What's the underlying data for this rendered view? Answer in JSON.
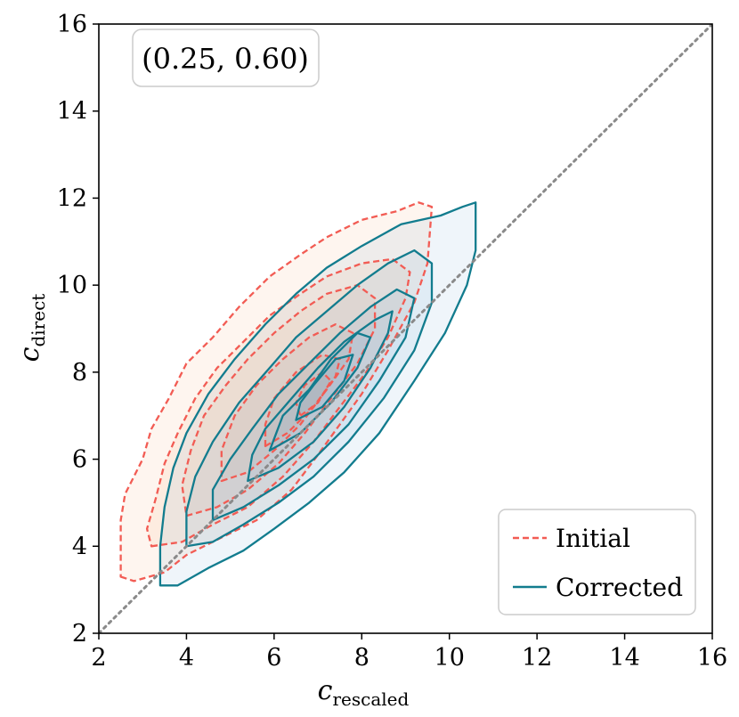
{
  "chart_data": {
    "type": "contour",
    "annotation": "(0.25, 0.60)",
    "xlabel": {
      "main": "c",
      "sub": "rescaled"
    },
    "ylabel": {
      "main": "c",
      "sub": "direct"
    },
    "xlim": [
      2,
      16
    ],
    "ylim": [
      2,
      16
    ],
    "xticks": [
      2,
      4,
      6,
      8,
      10,
      12,
      14,
      16
    ],
    "yticks": [
      2,
      4,
      6,
      8,
      10,
      12,
      14,
      16
    ],
    "reference_line": {
      "style": "dotted",
      "color": "#8a8a8a",
      "from": [
        2,
        2
      ],
      "to": [
        16,
        16
      ]
    },
    "legend": {
      "position": "lower-right",
      "entries": [
        "Initial",
        "Corrected"
      ]
    },
    "series": [
      {
        "name": "Initial",
        "color": "#f25c54",
        "fill": "#f9a070",
        "line_style": "dashed",
        "levels": [
          [
            [
              2.5,
              3.3
            ],
            [
              2.8,
              3.2
            ],
            [
              3.5,
              3.4
            ],
            [
              4.0,
              3.8
            ],
            [
              4.8,
              4.2
            ],
            [
              5.6,
              4.6
            ],
            [
              6.4,
              5.3
            ],
            [
              7.0,
              6.1
            ],
            [
              7.5,
              6.8
            ],
            [
              8.0,
              7.5
            ],
            [
              8.6,
              8.5
            ],
            [
              9.2,
              9.6
            ],
            [
              9.5,
              10.5
            ],
            [
              9.6,
              11.8
            ],
            [
              9.3,
              11.9
            ],
            [
              8.8,
              11.7
            ],
            [
              8.0,
              11.5
            ],
            [
              7.2,
              11.1
            ],
            [
              6.6,
              10.7
            ],
            [
              5.9,
              10.2
            ],
            [
              5.2,
              9.5
            ],
            [
              4.6,
              8.8
            ],
            [
              4.0,
              8.2
            ],
            [
              3.6,
              7.4
            ],
            [
              3.2,
              6.7
            ],
            [
              3.0,
              6.0
            ],
            [
              2.6,
              5.2
            ],
            [
              2.5,
              4.6
            ],
            [
              2.5,
              3.8
            ]
          ],
          [
            [
              3.2,
              4.0
            ],
            [
              3.9,
              4.1
            ],
            [
              4.6,
              4.5
            ],
            [
              5.4,
              4.9
            ],
            [
              6.2,
              5.6
            ],
            [
              6.9,
              6.4
            ],
            [
              7.5,
              7.2
            ],
            [
              8.1,
              8.0
            ],
            [
              8.6,
              8.8
            ],
            [
              9.0,
              9.7
            ],
            [
              9.1,
              10.3
            ],
            [
              8.7,
              10.6
            ],
            [
              8.0,
              10.5
            ],
            [
              7.2,
              10.2
            ],
            [
              6.6,
              9.8
            ],
            [
              5.9,
              9.3
            ],
            [
              5.3,
              8.7
            ],
            [
              4.7,
              8.1
            ],
            [
              4.2,
              7.4
            ],
            [
              3.8,
              6.6
            ],
            [
              3.5,
              5.9
            ],
            [
              3.3,
              5.1
            ],
            [
              3.1,
              4.4
            ]
          ],
          [
            [
              4.0,
              4.7
            ],
            [
              4.7,
              4.9
            ],
            [
              5.4,
              5.3
            ],
            [
              6.1,
              5.9
            ],
            [
              6.7,
              6.6
            ],
            [
              7.3,
              7.4
            ],
            [
              7.9,
              8.2
            ],
            [
              8.3,
              9.0
            ],
            [
              8.3,
              9.7
            ],
            [
              7.9,
              10.0
            ],
            [
              7.2,
              9.8
            ],
            [
              6.6,
              9.4
            ],
            [
              6.0,
              8.9
            ],
            [
              5.4,
              8.3
            ],
            [
              4.9,
              7.7
            ],
            [
              4.4,
              7.0
            ],
            [
              4.1,
              6.2
            ],
            [
              3.9,
              5.4
            ]
          ],
          [
            [
              4.8,
              5.5
            ],
            [
              5.4,
              5.7
            ],
            [
              6.0,
              6.2
            ],
            [
              6.6,
              6.8
            ],
            [
              7.2,
              7.6
            ],
            [
              7.7,
              8.3
            ],
            [
              7.8,
              8.9
            ],
            [
              7.4,
              9.1
            ],
            [
              6.8,
              8.8
            ],
            [
              6.2,
              8.3
            ],
            [
              5.6,
              7.7
            ],
            [
              5.1,
              7.0
            ],
            [
              4.8,
              6.2
            ]
          ],
          [
            [
              5.8,
              6.3
            ],
            [
              6.3,
              6.6
            ],
            [
              6.9,
              7.2
            ],
            [
              7.4,
              7.9
            ],
            [
              7.5,
              8.3
            ],
            [
              7.1,
              8.4
            ],
            [
              6.5,
              8.0
            ],
            [
              6.0,
              7.4
            ],
            [
              5.8,
              6.8
            ]
          ],
          [
            [
              6.6,
              7.0
            ],
            [
              7.0,
              7.3
            ],
            [
              7.3,
              7.8
            ],
            [
              7.1,
              8.0
            ],
            [
              6.7,
              7.7
            ],
            [
              6.5,
              7.3
            ]
          ]
        ]
      },
      {
        "name": "Corrected",
        "color": "#127c8e",
        "fill": "#6fa8d6",
        "line_style": "solid",
        "levels": [
          [
            [
              3.4,
              3.1
            ],
            [
              3.8,
              3.1
            ],
            [
              4.5,
              3.5
            ],
            [
              5.3,
              3.9
            ],
            [
              6.0,
              4.4
            ],
            [
              6.8,
              5.0
            ],
            [
              7.6,
              5.7
            ],
            [
              8.4,
              6.6
            ],
            [
              9.2,
              7.8
            ],
            [
              9.9,
              8.9
            ],
            [
              10.4,
              10.0
            ],
            [
              10.6,
              10.8
            ],
            [
              10.6,
              11.9
            ],
            [
              10.3,
              11.8
            ],
            [
              9.8,
              11.6
            ],
            [
              8.9,
              11.4
            ],
            [
              8.0,
              10.9
            ],
            [
              7.2,
              10.4
            ],
            [
              6.5,
              9.8
            ],
            [
              5.8,
              9.1
            ],
            [
              5.1,
              8.3
            ],
            [
              4.5,
              7.5
            ],
            [
              4.0,
              6.6
            ],
            [
              3.7,
              5.8
            ],
            [
              3.5,
              4.9
            ],
            [
              3.4,
              4.0
            ]
          ],
          [
            [
              4.0,
              4.0
            ],
            [
              4.6,
              4.1
            ],
            [
              5.3,
              4.5
            ],
            [
              6.1,
              5.0
            ],
            [
              6.9,
              5.6
            ],
            [
              7.7,
              6.4
            ],
            [
              8.5,
              7.4
            ],
            [
              9.2,
              8.5
            ],
            [
              9.6,
              9.6
            ],
            [
              9.6,
              10.5
            ],
            [
              9.2,
              10.8
            ],
            [
              8.6,
              10.5
            ],
            [
              7.9,
              10.0
            ],
            [
              7.2,
              9.4
            ],
            [
              6.5,
              8.8
            ],
            [
              5.9,
              8.1
            ],
            [
              5.2,
              7.3
            ],
            [
              4.6,
              6.4
            ],
            [
              4.2,
              5.6
            ],
            [
              4.0,
              4.8
            ]
          ],
          [
            [
              4.6,
              4.6
            ],
            [
              5.3,
              4.9
            ],
            [
              6.1,
              5.4
            ],
            [
              6.9,
              6.0
            ],
            [
              7.7,
              6.8
            ],
            [
              8.4,
              7.8
            ],
            [
              9.0,
              8.8
            ],
            [
              9.2,
              9.7
            ],
            [
              8.8,
              9.9
            ],
            [
              8.2,
              9.5
            ],
            [
              7.5,
              8.9
            ],
            [
              6.8,
              8.2
            ],
            [
              6.1,
              7.5
            ],
            [
              5.5,
              6.7
            ],
            [
              5.0,
              6.0
            ],
            [
              4.6,
              5.3
            ]
          ],
          [
            [
              5.4,
              5.5
            ],
            [
              6.1,
              5.8
            ],
            [
              6.9,
              6.4
            ],
            [
              7.6,
              7.2
            ],
            [
              8.2,
              8.1
            ],
            [
              8.6,
              8.9
            ],
            [
              8.7,
              9.4
            ],
            [
              8.3,
              9.2
            ],
            [
              7.6,
              8.7
            ],
            [
              7.0,
              8.1
            ],
            [
              6.4,
              7.4
            ],
            [
              5.8,
              6.7
            ],
            [
              5.5,
              6.1
            ]
          ],
          [
            [
              5.9,
              6.2
            ],
            [
              6.6,
              6.6
            ],
            [
              7.3,
              7.3
            ],
            [
              7.9,
              8.1
            ],
            [
              8.2,
              8.8
            ],
            [
              7.9,
              8.9
            ],
            [
              7.3,
              8.3
            ],
            [
              6.8,
              7.6
            ],
            [
              6.2,
              7.0
            ]
          ],
          [
            [
              6.5,
              6.9
            ],
            [
              7.1,
              7.2
            ],
            [
              7.6,
              7.8
            ],
            [
              7.8,
              8.4
            ],
            [
              7.4,
              8.3
            ],
            [
              6.9,
              7.7
            ],
            [
              6.6,
              7.3
            ]
          ]
        ]
      }
    ]
  }
}
